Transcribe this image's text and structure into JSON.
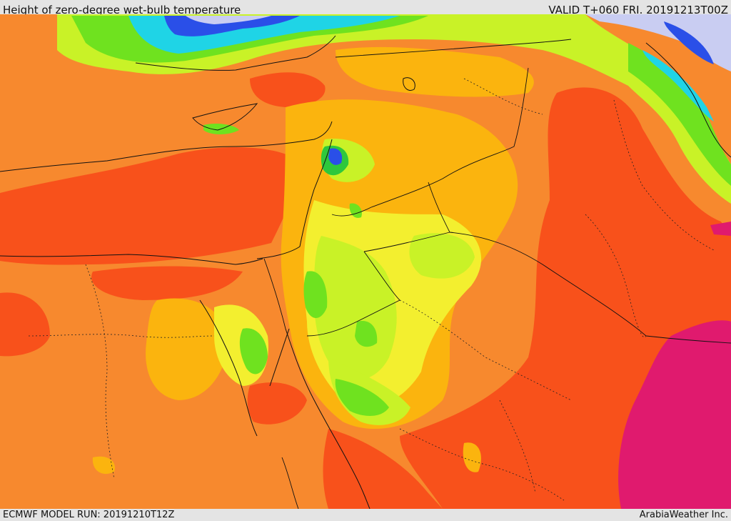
{
  "header": {
    "title": "Height of zero-degree wet-bulb temperature",
    "valid": "VALID T+060 FRI. 20191213T00Z"
  },
  "footer": {
    "model_run": "ECMWF MODEL RUN: 20191210T12Z",
    "credit": "ArabiaWeather Inc."
  },
  "colors": {
    "orange": "#f7892e",
    "red_orange": "#f8511b",
    "amber": "#fbb40e",
    "yellow": "#f3ef2f",
    "yellow_green": "#c9f227",
    "green": "#6fe21f",
    "dark_green": "#2ec83c",
    "cyan": "#1fd4e6",
    "blue": "#2a4fe8",
    "lavender": "#c9cdf2",
    "magenta": "#e01a6e"
  }
}
